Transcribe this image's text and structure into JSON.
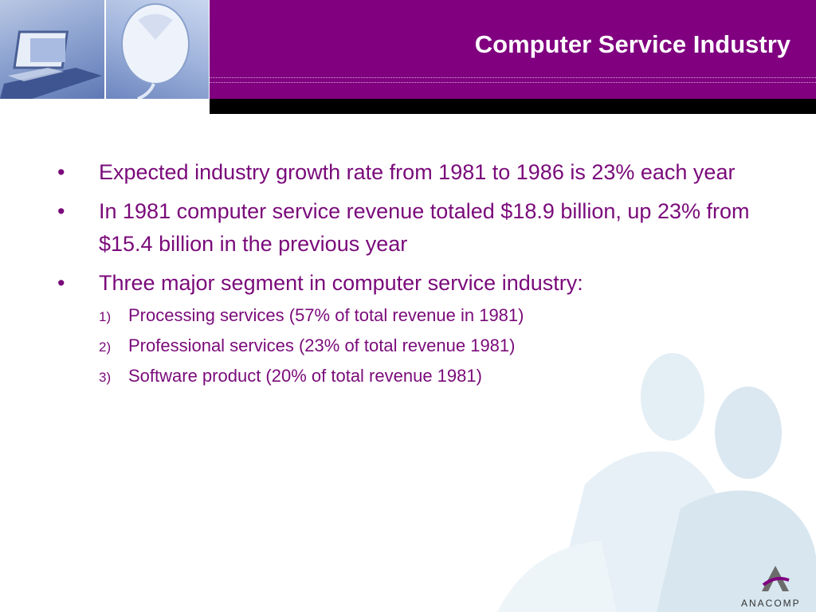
{
  "slide": {
    "title": "Computer Service Industry",
    "bullets": [
      {
        "marker": "•",
        "text": "Expected industry growth rate from 1981 to 1986 is 23% each year"
      },
      {
        "marker": "•",
        "text": "In 1981 computer service revenue totaled $18.9 billion, up 23% from $15.4 billion in the previous year"
      },
      {
        "marker": "•",
        "text": "Three major segment in computer service industry:"
      }
    ],
    "sub_items": [
      {
        "marker": "1)",
        "text": "Processing services (57% of total revenue in 1981)"
      },
      {
        "marker": "2)",
        "text": "Professional services (23% of total revenue 1981)"
      },
      {
        "marker": "3)",
        "text": "Software product (20% of total revenue 1981)"
      }
    ]
  },
  "logo": {
    "text": "ANACOMP"
  },
  "colors": {
    "header": "#800080",
    "text": "#7a0a7a",
    "bar": "#000000"
  },
  "icons": [
    "laptop-photo",
    "mouse-photo",
    "business-people-watermark",
    "anacomp-logo-icon"
  ]
}
